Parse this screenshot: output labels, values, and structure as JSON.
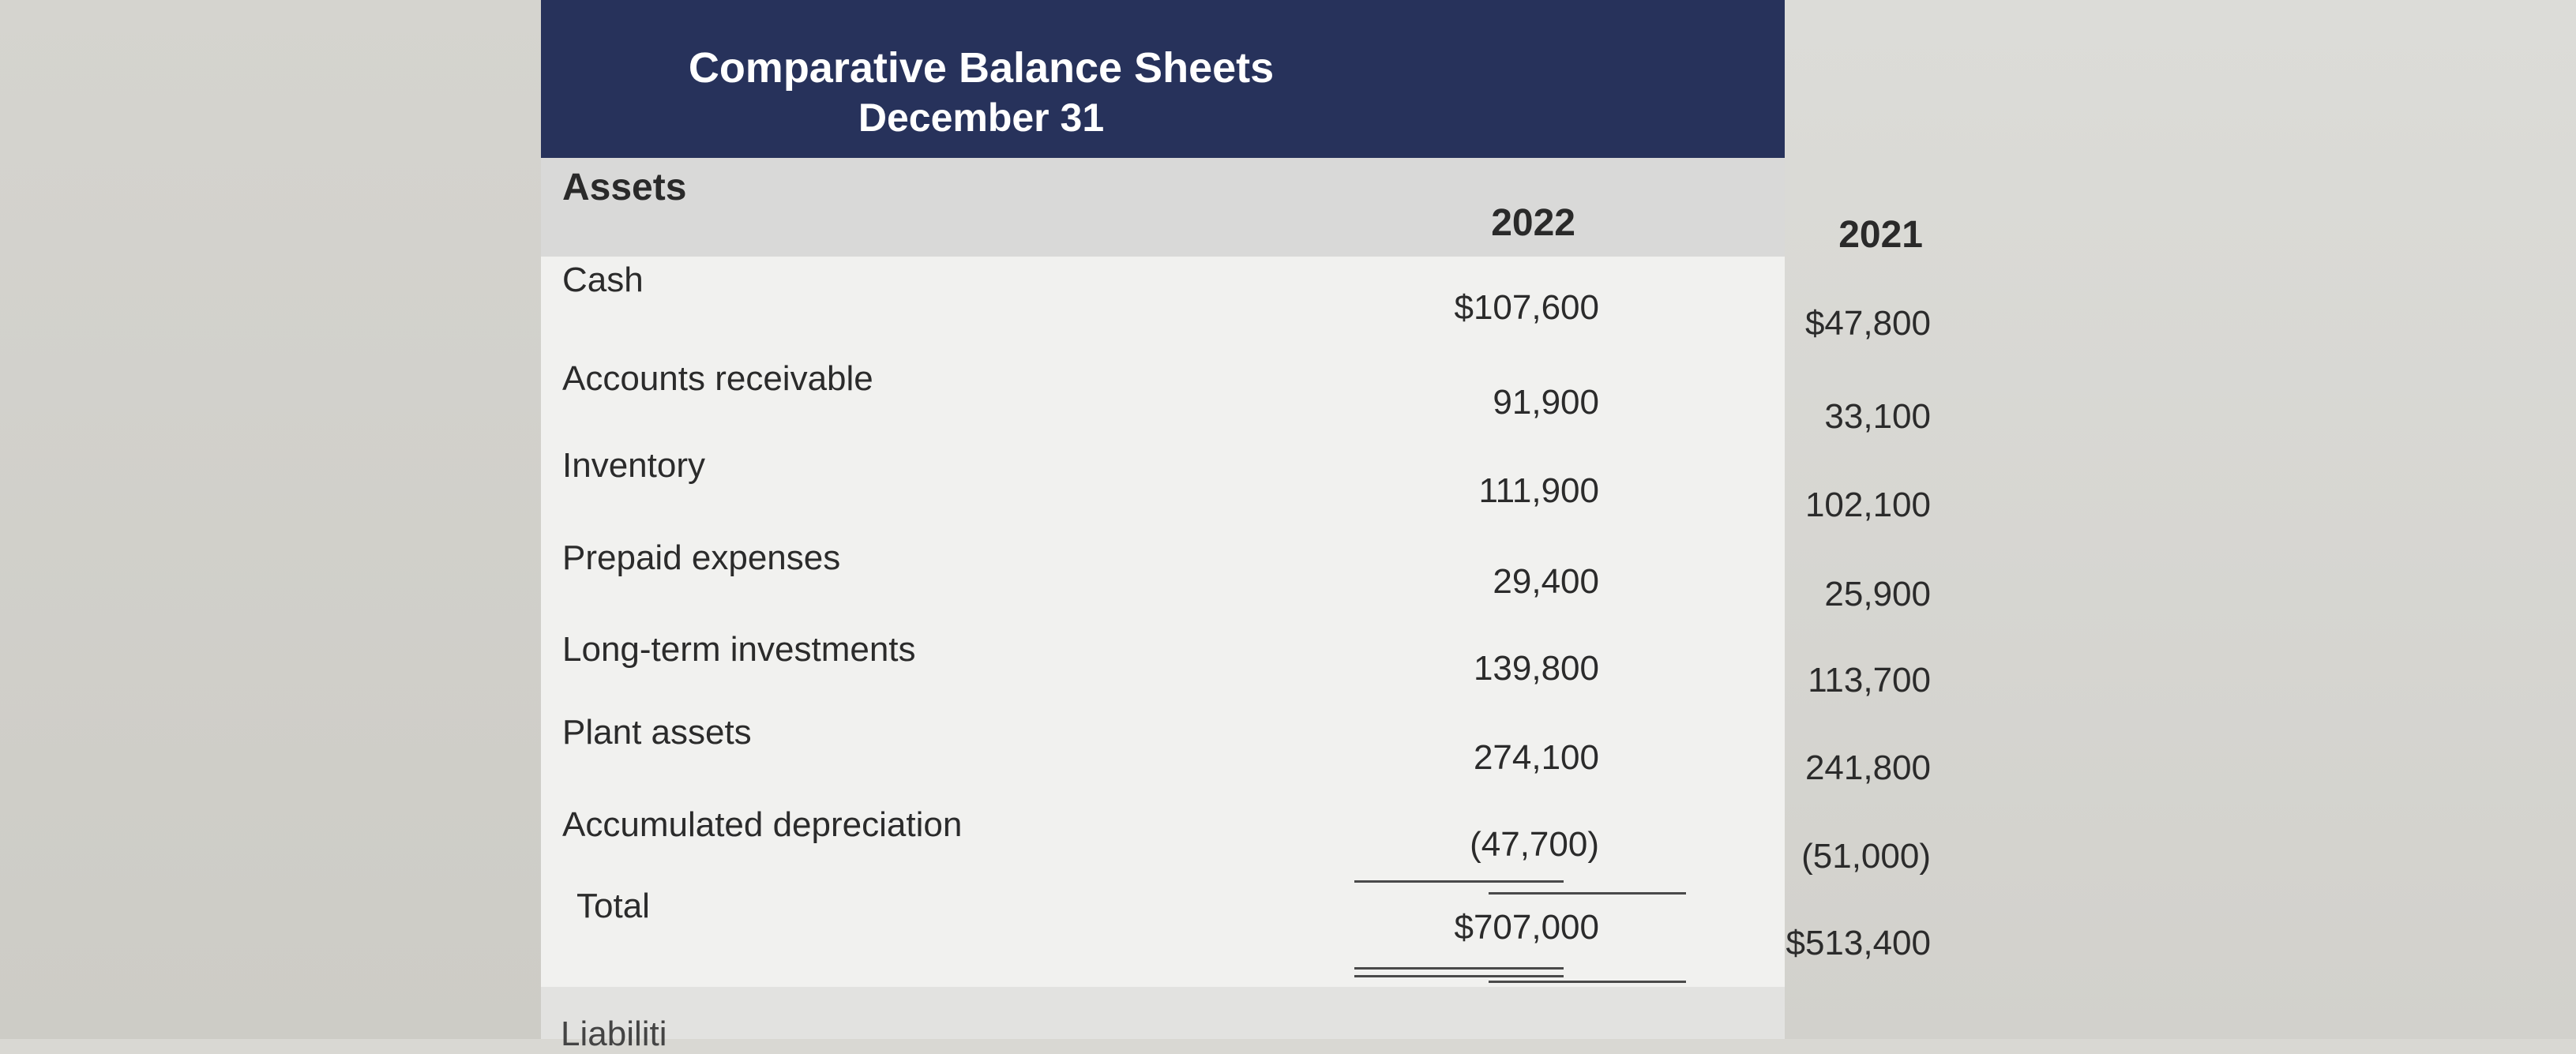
{
  "report": {
    "title": "Comparative Balance Sheets",
    "subtitle": "December 31"
  },
  "columns": {
    "section_label": "Assets",
    "year_1": "2022",
    "year_2": "2021"
  },
  "rows": [
    {
      "label": "Cash",
      "y2022": "$107,600",
      "y2021": "$47,800"
    },
    {
      "label": "Accounts receivable",
      "y2022": "91,900",
      "y2021": "33,100"
    },
    {
      "label": "Inventory",
      "y2022": "111,900",
      "y2021": "102,100"
    },
    {
      "label": "Prepaid expenses",
      "y2022": "29,400",
      "y2021": "25,900"
    },
    {
      "label": "Long-term investments",
      "y2022": "139,800",
      "y2021": "113,700"
    },
    {
      "label": "Plant assets",
      "y2022": "274,100",
      "y2021": "241,800"
    },
    {
      "label": "Accumulated depreciation",
      "y2022": "(47,700)",
      "y2021": "(51,000)"
    }
  ],
  "total": {
    "label": "Total",
    "y2022": "$707,000",
    "y2021": "$513,400"
  },
  "next_section_partial": "Liabiliti"
}
